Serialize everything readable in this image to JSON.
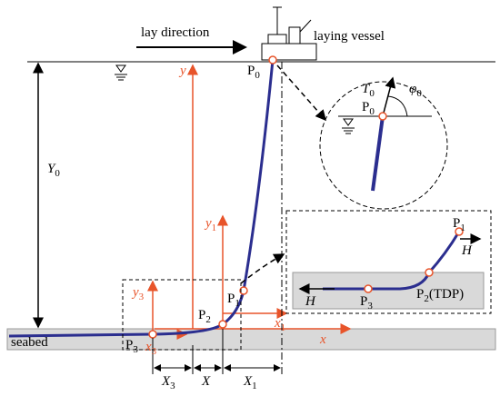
{
  "lay_direction": "lay direction",
  "laying_vessel": "laying vessel",
  "seabed": "seabed",
  "axis_y": "y",
  "axis_x": "x",
  "depth": {
    "base": "Y",
    "sub": "0"
  },
  "p0": {
    "base": "P",
    "sub": "0"
  },
  "detail_top": {
    "tension": {
      "base": "T",
      "sub": "0"
    },
    "angle": {
      "base": "φ",
      "sub": "0"
    },
    "point": {
      "base": "P",
      "sub": "0"
    }
  },
  "local_axes": {
    "y1": {
      "base": "y",
      "sub": "1"
    },
    "x1": {
      "base": "x",
      "sub": "1"
    },
    "y3": {
      "base": "y",
      "sub": "3"
    },
    "x3": {
      "base": "x",
      "sub": "3"
    }
  },
  "points": {
    "p1": {
      "base": "P",
      "sub": "1"
    },
    "p2": {
      "base": "P",
      "sub": "2"
    },
    "p3": {
      "base": "P",
      "sub": "3"
    }
  },
  "dimensions": {
    "x3": {
      "base": "X",
      "sub": "3"
    },
    "x": "X",
    "x1": {
      "base": "X",
      "sub": "1"
    }
  },
  "detail_bottom": {
    "p1": {
      "base": "P",
      "sub": "1"
    },
    "h_right": "H",
    "p2": {
      "base": "P",
      "sub": "2",
      "suffix": "(TDP)"
    },
    "p3": {
      "base": "P",
      "sub": "3"
    },
    "h_left": "H"
  }
}
